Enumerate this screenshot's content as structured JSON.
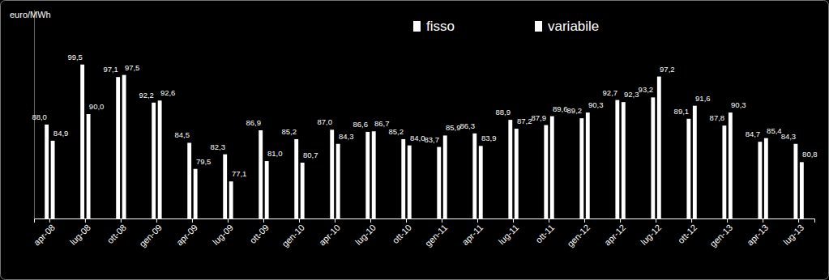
{
  "chart_data": {
    "type": "bar",
    "y_label": "euro/MWh",
    "categories": [
      "apr-08",
      "lug-08",
      "ott-08",
      "gen-09",
      "apr-09",
      "lug-09",
      "ott-09",
      "gen-10",
      "apr-10",
      "lug-10",
      "ott-10",
      "gen-11",
      "apr-11",
      "lug-11",
      "ott-11",
      "gen-12",
      "apr-12",
      "lug-12",
      "ott-12",
      "gen-13",
      "apr-13",
      "lug-13"
    ],
    "series": [
      {
        "name": "fisso",
        "color": "#ffffff",
        "values": [
          88.0,
          99.5,
          97.1,
          92.2,
          84.5,
          82.3,
          86.9,
          85.2,
          87.0,
          86.6,
          85.2,
          83.7,
          86.3,
          88.9,
          87.9,
          89.2,
          92.7,
          93.2,
          89.1,
          87.8,
          84.7,
          84.3
        ],
        "value_labels": [
          "88,0",
          "99,5",
          "97,1",
          "92,2",
          "84,5",
          "82,3",
          "86,9",
          "85,2",
          "87,0",
          "86,6",
          "85,2",
          "83,7",
          "86,3",
          "88,9",
          "87,9",
          "89,2",
          "92,7",
          "93,2",
          "89,1",
          "87,8",
          "84,7",
          "84,3"
        ]
      },
      {
        "name": "variabile",
        "color": "#ffffff",
        "values": [
          84.9,
          90.0,
          97.5,
          92.6,
          79.5,
          77.1,
          81.0,
          80.7,
          84.3,
          86.7,
          84.0,
          85.9,
          83.9,
          87.2,
          89.6,
          90.3,
          92.3,
          97.2,
          91.6,
          90.3,
          85.4,
          80.8
        ],
        "value_labels": [
          "84,9",
          "90,0",
          "97,5",
          "92,6",
          "79,5",
          "77,1",
          "81,0",
          "80,7",
          "84,3",
          "86,7",
          "84,0",
          "85,9",
          "83,9",
          "87,2",
          "89,6",
          "90,3",
          "92,3",
          "97,2",
          "91,6",
          "90,3",
          "85,4",
          "80,8"
        ]
      }
    ],
    "ylim": [
      70,
      110
    ],
    "data_labels": true,
    "tick_labels": "x",
    "legend": "top",
    "grid": false
  }
}
